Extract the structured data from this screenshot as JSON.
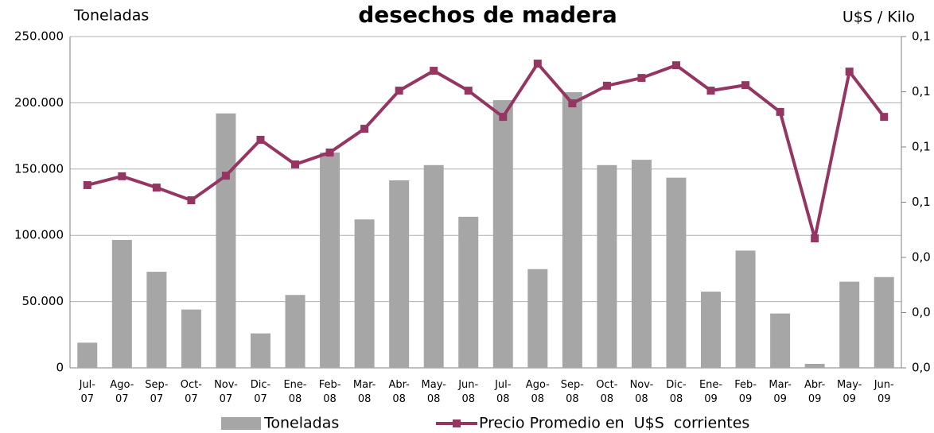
{
  "chart_data": {
    "type": "bar_line",
    "title": "desechos de madera",
    "y_label": "Toneladas",
    "y2_label": "U$S / Kilo",
    "categories": [
      "Jul-07",
      "Ago-07",
      "Sep-07",
      "Oct-07",
      "Nov-07",
      "Dic-07",
      "Ene-08",
      "Feb-08",
      "Mar-08",
      "Abr-08",
      "May-08",
      "Jun-08",
      "Jul-08",
      "Ago-08",
      "Sep-08",
      "Oct-08",
      "Nov-08",
      "Dic-08",
      "Ene-09",
      "Feb-09",
      "Mar-09",
      "Abr-09",
      "May-09",
      "Jun-09"
    ],
    "series": [
      {
        "name": "Toneladas",
        "type": "bar",
        "color": "#a6a6a6",
        "values": [
          19000,
          96500,
          72500,
          44000,
          192000,
          26000,
          55000,
          162500,
          112000,
          141500,
          153000,
          114000,
          202000,
          74500,
          208000,
          153000,
          157000,
          143500,
          57500,
          88500,
          41000,
          3000,
          65000,
          68500
        ]
      },
      {
        "name": "Precio Promedio en  U$S  corrientes",
        "type": "line",
        "axis": "y2",
        "color": "#953562",
        "values": [
          0.0662,
          0.0694,
          0.0653,
          0.0607,
          0.0696,
          0.0826,
          0.0737,
          0.078,
          0.0866,
          0.1004,
          0.1076,
          0.1004,
          0.0909,
          0.1102,
          0.0958,
          0.1022,
          0.105,
          0.1096,
          0.1004,
          0.1024,
          0.0927,
          0.0469,
          0.1073,
          0.0909
        ]
      }
    ],
    "ylim": [
      0,
      250000
    ],
    "yticks": [
      0,
      {
        "value": 50000,
        "label": "50.000"
      },
      {
        "value": 100000,
        "label": "100.000"
      },
      {
        "value": 150000,
        "label": "150.000"
      },
      {
        "value": 200000,
        "label": "200.000"
      },
      {
        "value": 250000,
        "label": "250.000"
      }
    ],
    "y2lim": [
      0,
      0.12
    ],
    "y2ticks": [
      {
        "value": 0,
        "label": "0,0"
      },
      {
        "value": 0.02,
        "label": "0,0"
      },
      {
        "value": 0.04,
        "label": "0,0"
      },
      {
        "value": 0.06,
        "label": "0,1"
      },
      {
        "value": 0.08,
        "label": "0,1"
      },
      {
        "value": 0.1,
        "label": "0,1"
      },
      {
        "value": 0.12,
        "label": "0,1"
      }
    ],
    "grid": true,
    "legend": "bottom"
  }
}
